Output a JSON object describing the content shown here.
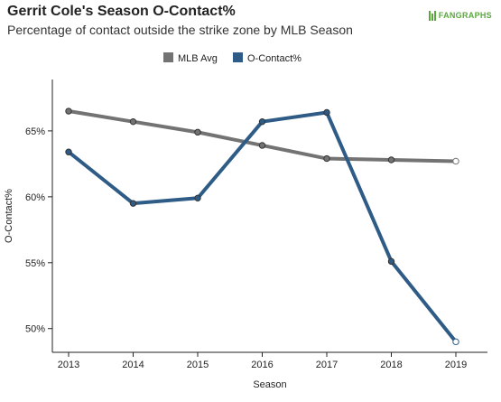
{
  "header": {
    "title": "Gerrit Cole's Season O-Contact%",
    "subtitle": "Percentage of contact outside the strike zone by MLB Season",
    "logo_text": "FANGRAPHS"
  },
  "colors": {
    "mlb_avg": "#737373",
    "o_contact": "#2e5c86",
    "brand": "#5aa83e"
  },
  "chart_data": {
    "type": "line",
    "title": "Gerrit Cole's Season O-Contact%",
    "subtitle": "Percentage of contact outside the strike zone by MLB Season",
    "xlabel": "Season",
    "ylabel": "O-Contact%",
    "x": [
      2013,
      2014,
      2015,
      2016,
      2017,
      2018,
      2019
    ],
    "x_tick_labels": [
      "2013",
      "2014",
      "2015",
      "2016",
      "2017",
      "2018",
      "2019"
    ],
    "y_ticks": [
      50,
      55,
      60,
      65
    ],
    "y_tick_labels": [
      "50%",
      "55%",
      "60%",
      "65%"
    ],
    "ylim": [
      48.2,
      68.9
    ],
    "grid": false,
    "legend_position": "top-center",
    "series": [
      {
        "name": "MLB Avg",
        "color": "#737373",
        "values": [
          66.5,
          65.7,
          64.9,
          63.9,
          62.9,
          62.8,
          62.7
        ]
      },
      {
        "name": "O-Contact%",
        "color": "#2e5c86",
        "values": [
          63.4,
          59.5,
          59.9,
          65.7,
          66.4,
          55.1,
          49.0
        ]
      }
    ]
  }
}
